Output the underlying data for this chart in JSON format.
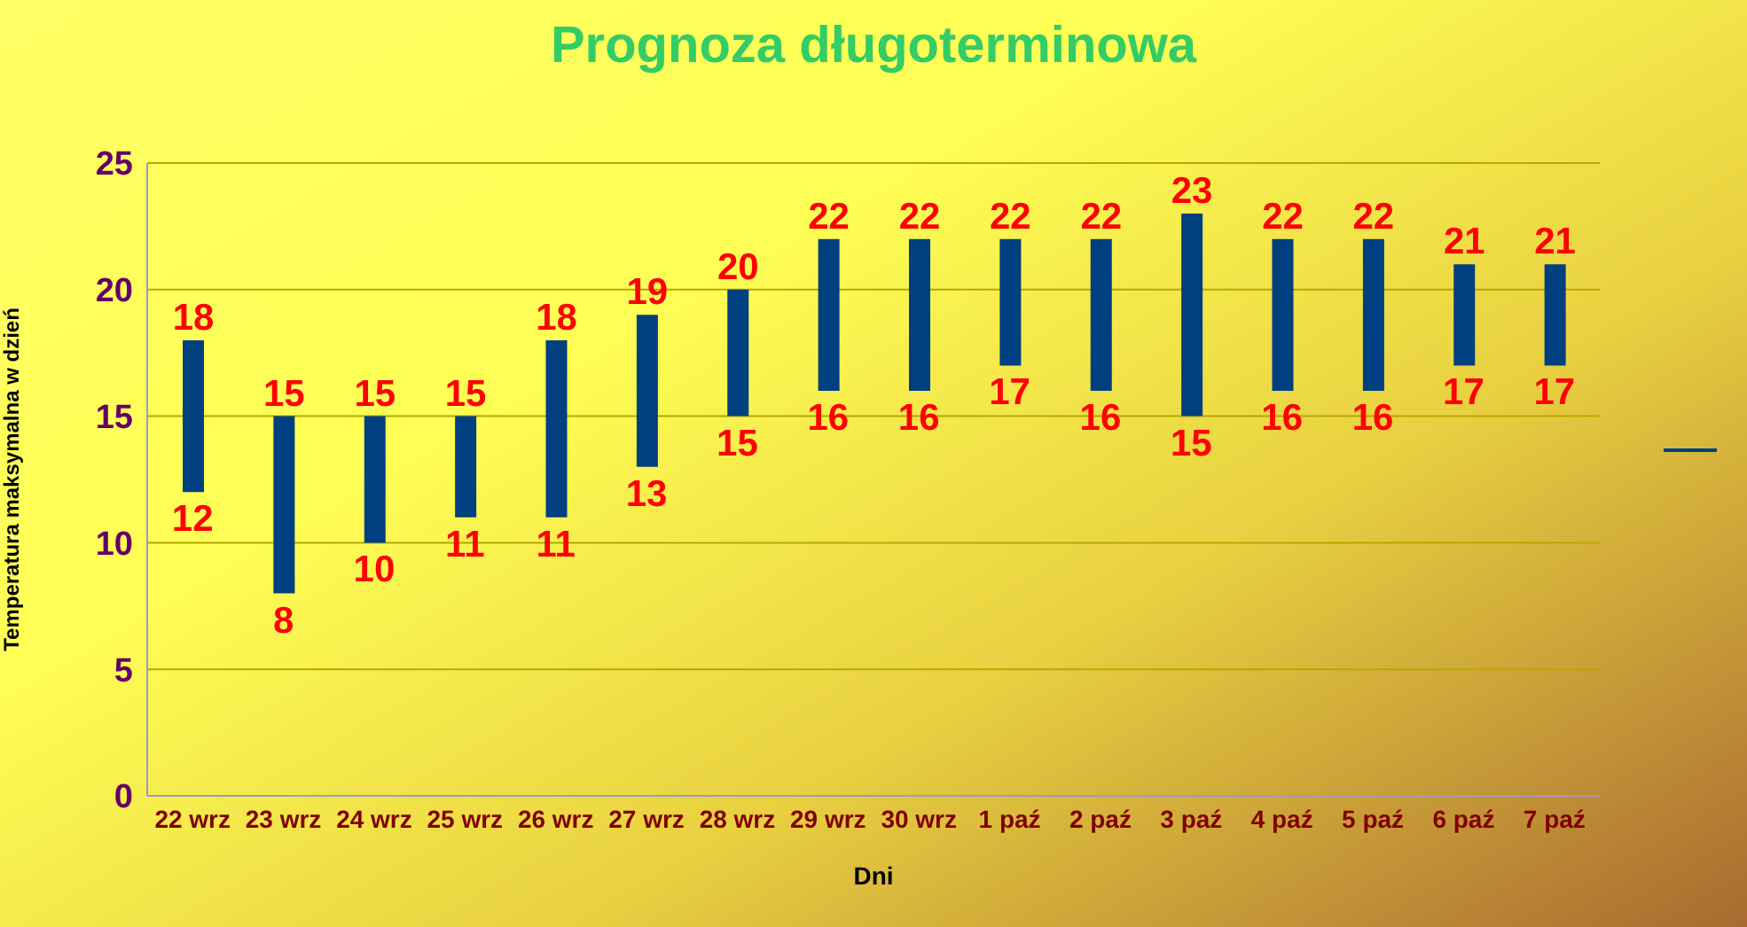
{
  "chart_data": {
    "type": "bar",
    "title": "Prognoza długoterminowa",
    "xlabel": "Dni",
    "ylabel": "Temperatura maksymalna w dzień",
    "categories": [
      "22 wrz",
      "23 wrz",
      "24 wrz",
      "25 wrz",
      "26 wrz",
      "27 wrz",
      "28 wrz",
      "29 wrz",
      "30 wrz",
      "1 paź",
      "2 paź",
      "3 paź",
      "4 paź",
      "5 paź",
      "6 paź",
      "7 paź"
    ],
    "series": [
      {
        "color": "#004080",
        "base": [
          12,
          8,
          10,
          11,
          11,
          13,
          15,
          16,
          16,
          17,
          16,
          15,
          16,
          16,
          17,
          17
        ],
        "values": [
          6,
          7,
          5,
          4,
          7,
          6,
          5,
          6,
          6,
          5,
          6,
          8,
          6,
          6,
          4,
          4
        ],
        "value_labels": [
          "18",
          "15",
          "15",
          "15",
          "18",
          "19",
          "20",
          "22",
          "22",
          "22",
          "22",
          "23",
          "22",
          "22",
          "21",
          "21"
        ]
      }
    ],
    "annotations": [
      {
        "text": "12",
        "x": "22 wrz",
        "y": 12
      },
      {
        "text": "8",
        "x": "23 wrz",
        "y": 8
      },
      {
        "text": "10",
        "x": "24 wrz",
        "y": 10
      },
      {
        "text": "11",
        "x": "25 wrz",
        "y": 11
      },
      {
        "text": "11",
        "x": "26 wrz",
        "y": 11
      },
      {
        "text": "13",
        "x": "27 wrz",
        "y": 13
      },
      {
        "text": "15",
        "x": "28 wrz",
        "y": 15
      },
      {
        "text": "16",
        "x": "29 wrz",
        "y": 16
      },
      {
        "text": "16",
        "x": "30 wrz",
        "y": 16
      },
      {
        "text": "17",
        "x": "1 paź",
        "y": 17
      },
      {
        "text": "16",
        "x": "2 paź",
        "y": 16
      },
      {
        "text": "15",
        "x": "3 paź",
        "y": 15
      },
      {
        "text": "16",
        "x": "4 paź",
        "y": 16
      },
      {
        "text": "16",
        "x": "5 paź",
        "y": 16
      },
      {
        "text": "17",
        "x": "6 paź",
        "y": 17
      },
      {
        "text": "17",
        "x": "7 paź",
        "y": 17
      }
    ],
    "ylim": [
      0,
      25
    ],
    "yticks": [
      0,
      5,
      10,
      15,
      20,
      25
    ],
    "grid": "y"
  }
}
